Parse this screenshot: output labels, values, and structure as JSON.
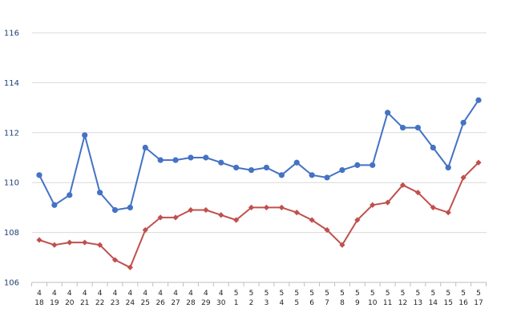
{
  "chart_data": {
    "type": "line",
    "title": "",
    "xlabel": "",
    "ylabel": "",
    "ylim": [
      106,
      116
    ],
    "yticks": [
      106,
      108,
      110,
      112,
      114,
      116
    ],
    "grid": true,
    "categories": [
      {
        "month": "4",
        "day": "18"
      },
      {
        "month": "4",
        "day": "19"
      },
      {
        "month": "4",
        "day": "20"
      },
      {
        "month": "4",
        "day": "21"
      },
      {
        "month": "4",
        "day": "22"
      },
      {
        "month": "4",
        "day": "23"
      },
      {
        "month": "4",
        "day": "24"
      },
      {
        "month": "4",
        "day": "25"
      },
      {
        "month": "4",
        "day": "26"
      },
      {
        "month": "4",
        "day": "27"
      },
      {
        "month": "4",
        "day": "28"
      },
      {
        "month": "4",
        "day": "29"
      },
      {
        "month": "4",
        "day": "30"
      },
      {
        "month": "5",
        "day": "1"
      },
      {
        "month": "5",
        "day": "2"
      },
      {
        "month": "5",
        "day": "3"
      },
      {
        "month": "5",
        "day": "4"
      },
      {
        "month": "5",
        "day": "5"
      },
      {
        "month": "5",
        "day": "6"
      },
      {
        "month": "5",
        "day": "7"
      },
      {
        "month": "5",
        "day": "8"
      },
      {
        "month": "5",
        "day": "9"
      },
      {
        "month": "5",
        "day": "10"
      },
      {
        "month": "5",
        "day": "11"
      },
      {
        "month": "5",
        "day": "12"
      },
      {
        "month": "5",
        "day": "13"
      },
      {
        "month": "5",
        "day": "14"
      },
      {
        "month": "5",
        "day": "15"
      },
      {
        "month": "5",
        "day": "16"
      },
      {
        "month": "5",
        "day": "17"
      }
    ],
    "series": [
      {
        "color": "#4472c4",
        "marker": "circle",
        "values": [
          110.3,
          109.1,
          109.5,
          111.9,
          109.6,
          108.9,
          109.0,
          111.4,
          110.9,
          110.9,
          111.0,
          111.0,
          110.8,
          110.6,
          110.5,
          110.6,
          110.3,
          110.8,
          110.3,
          110.2,
          110.5,
          110.7,
          110.7,
          112.8,
          112.2,
          112.2,
          111.4,
          110.6,
          112.4,
          113.3
        ]
      },
      {
        "color": "#c0504d",
        "marker": "diamond",
        "values": [
          107.7,
          107.5,
          107.6,
          107.6,
          107.5,
          106.9,
          106.6,
          108.1,
          108.6,
          108.6,
          108.9,
          108.9,
          108.7,
          108.5,
          109.0,
          109.0,
          109.0,
          108.8,
          108.5,
          108.1,
          107.5,
          108.5,
          109.1,
          109.2,
          109.9,
          109.6,
          109.0,
          108.8,
          110.2,
          110.8
        ]
      }
    ]
  }
}
